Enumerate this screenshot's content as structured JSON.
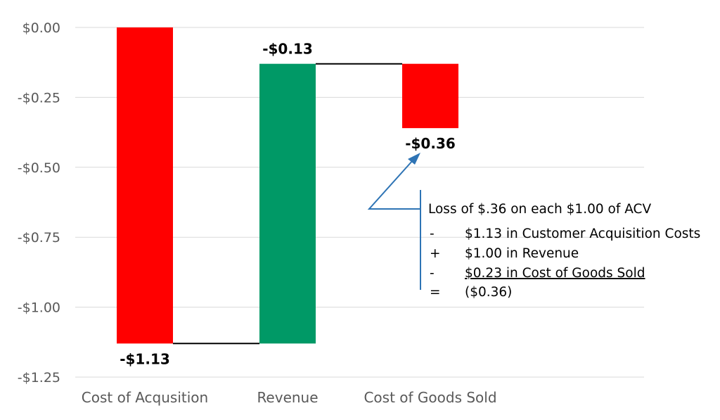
{
  "chart_data": {
    "type": "bar",
    "subtype": "waterfall",
    "categories": [
      "Cost of Acqusition",
      "Revenue",
      "Cost of Goods Sold"
    ],
    "bars": [
      {
        "category": "Cost of Acqusition",
        "start": 0.0,
        "end": -1.13,
        "color": "#ff0000",
        "label": "-$1.13",
        "label_position": "below"
      },
      {
        "category": "Revenue",
        "start": -1.13,
        "end": -0.13,
        "color": "#009966",
        "label": "-$0.13",
        "label_position": "above"
      },
      {
        "category": "Cost of Goods Sold",
        "start": -0.13,
        "end": -0.36,
        "color": "#ff0000",
        "label": "-$0.36",
        "label_position": "below"
      }
    ],
    "yticks": [
      {
        "value": 0.0,
        "label": "$0.00"
      },
      {
        "value": -0.25,
        "label": "-$0.25"
      },
      {
        "value": -0.5,
        "label": "-$0.50"
      },
      {
        "value": -0.75,
        "label": "-$0.75"
      },
      {
        "value": -1.0,
        "label": "-$1.00"
      },
      {
        "value": -1.25,
        "label": "-$1.25"
      }
    ],
    "ylim": [
      -1.25,
      0.0
    ],
    "grid": true,
    "legend": "none",
    "annotation": {
      "arrow_color": "#2e74b5",
      "title": "Loss of $.36 on each $1.00 of ACV",
      "lines": [
        {
          "sign": "-",
          "text": "$1.13 in Customer Acquisition Costs",
          "underline": false
        },
        {
          "sign": "+",
          "text": "$1.00 in Revenue",
          "underline": false
        },
        {
          "sign": "-",
          "text": "$0.23 in Cost of Goods Sold",
          "underline": true
        },
        {
          "sign": "=",
          "text": "($0.36)",
          "underline": false
        }
      ]
    }
  }
}
